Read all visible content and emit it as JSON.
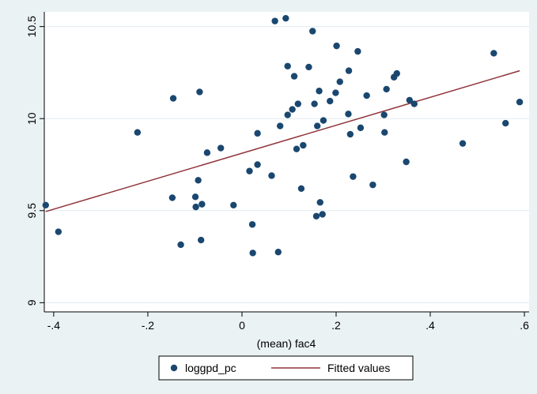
{
  "chart_data": {
    "type": "scatter",
    "title": "",
    "xlabel": "(mean) fac4",
    "ylabel": "",
    "xlim": [
      -0.42,
      0.61
    ],
    "ylim": [
      8.95,
      10.58
    ],
    "x_ticks": [
      -0.4,
      -0.2,
      0,
      0.2,
      0.4,
      0.6
    ],
    "x_tick_labels": [
      "-.4",
      "-.2",
      "0",
      ".2",
      ".4",
      ".6"
    ],
    "y_ticks": [
      9,
      9.5,
      10,
      10.5
    ],
    "y_tick_labels": [
      "9",
      "9.5",
      "10",
      "10.5"
    ],
    "grid": "horizontal",
    "legend": "bottom",
    "colors": {
      "plot_background": "#ffffff",
      "outer_background": "#eaf2f3",
      "gridline": "#e1ecef",
      "markers": "#1a476f",
      "fit_line": "#90353b"
    },
    "series": [
      {
        "name": "loggpd_pc",
        "type": "scatter",
        "points": [
          [
            -0.417,
            9.53
          ],
          [
            -0.39,
            9.385
          ],
          [
            -0.222,
            9.925
          ],
          [
            -0.148,
            9.57
          ],
          [
            -0.146,
            10.11
          ],
          [
            -0.13,
            9.315
          ],
          [
            -0.099,
            9.575
          ],
          [
            -0.098,
            9.52
          ],
          [
            -0.093,
            9.665
          ],
          [
            -0.09,
            10.145
          ],
          [
            -0.087,
            9.34
          ],
          [
            -0.085,
            9.535
          ],
          [
            -0.074,
            9.815
          ],
          [
            -0.045,
            9.84
          ],
          [
            -0.018,
            9.53
          ],
          [
            0.016,
            9.715
          ],
          [
            0.022,
            9.425
          ],
          [
            0.023,
            9.27
          ],
          [
            0.033,
            9.92
          ],
          [
            0.033,
            9.75
          ],
          [
            0.063,
            9.69
          ],
          [
            0.07,
            10.53
          ],
          [
            0.077,
            9.275
          ],
          [
            0.081,
            9.96
          ],
          [
            0.093,
            10.545
          ],
          [
            0.097,
            10.285
          ],
          [
            0.097,
            10.02
          ],
          [
            0.107,
            10.05
          ],
          [
            0.111,
            10.23
          ],
          [
            0.116,
            9.835
          ],
          [
            0.119,
            10.08
          ],
          [
            0.126,
            9.62
          ],
          [
            0.13,
            9.855
          ],
          [
            0.142,
            10.28
          ],
          [
            0.15,
            10.475
          ],
          [
            0.154,
            10.08
          ],
          [
            0.158,
            9.47
          ],
          [
            0.16,
            9.96
          ],
          [
            0.164,
            10.15
          ],
          [
            0.166,
            9.545
          ],
          [
            0.171,
            9.48
          ],
          [
            0.173,
            9.99
          ],
          [
            0.187,
            10.095
          ],
          [
            0.199,
            10.14
          ],
          [
            0.201,
            10.395
          ],
          [
            0.208,
            10.2
          ],
          [
            0.226,
            10.025
          ],
          [
            0.227,
            10.26
          ],
          [
            0.23,
            9.915
          ],
          [
            0.236,
            9.685
          ],
          [
            0.246,
            10.365
          ],
          [
            0.252,
            9.95
          ],
          [
            0.265,
            10.125
          ],
          [
            0.278,
            9.64
          ],
          [
            0.302,
            10.02
          ],
          [
            0.303,
            9.925
          ],
          [
            0.307,
            10.16
          ],
          [
            0.323,
            10.225
          ],
          [
            0.329,
            10.245
          ],
          [
            0.349,
            9.765
          ],
          [
            0.356,
            10.1
          ],
          [
            0.366,
            10.08
          ],
          [
            0.469,
            9.865
          ],
          [
            0.535,
            10.355
          ],
          [
            0.56,
            9.975
          ],
          [
            0.59,
            10.09
          ]
        ]
      },
      {
        "name": "Fitted values",
        "type": "line",
        "points": [
          [
            -0.417,
            9.495
          ],
          [
            0.59,
            10.26
          ]
        ]
      }
    ]
  }
}
